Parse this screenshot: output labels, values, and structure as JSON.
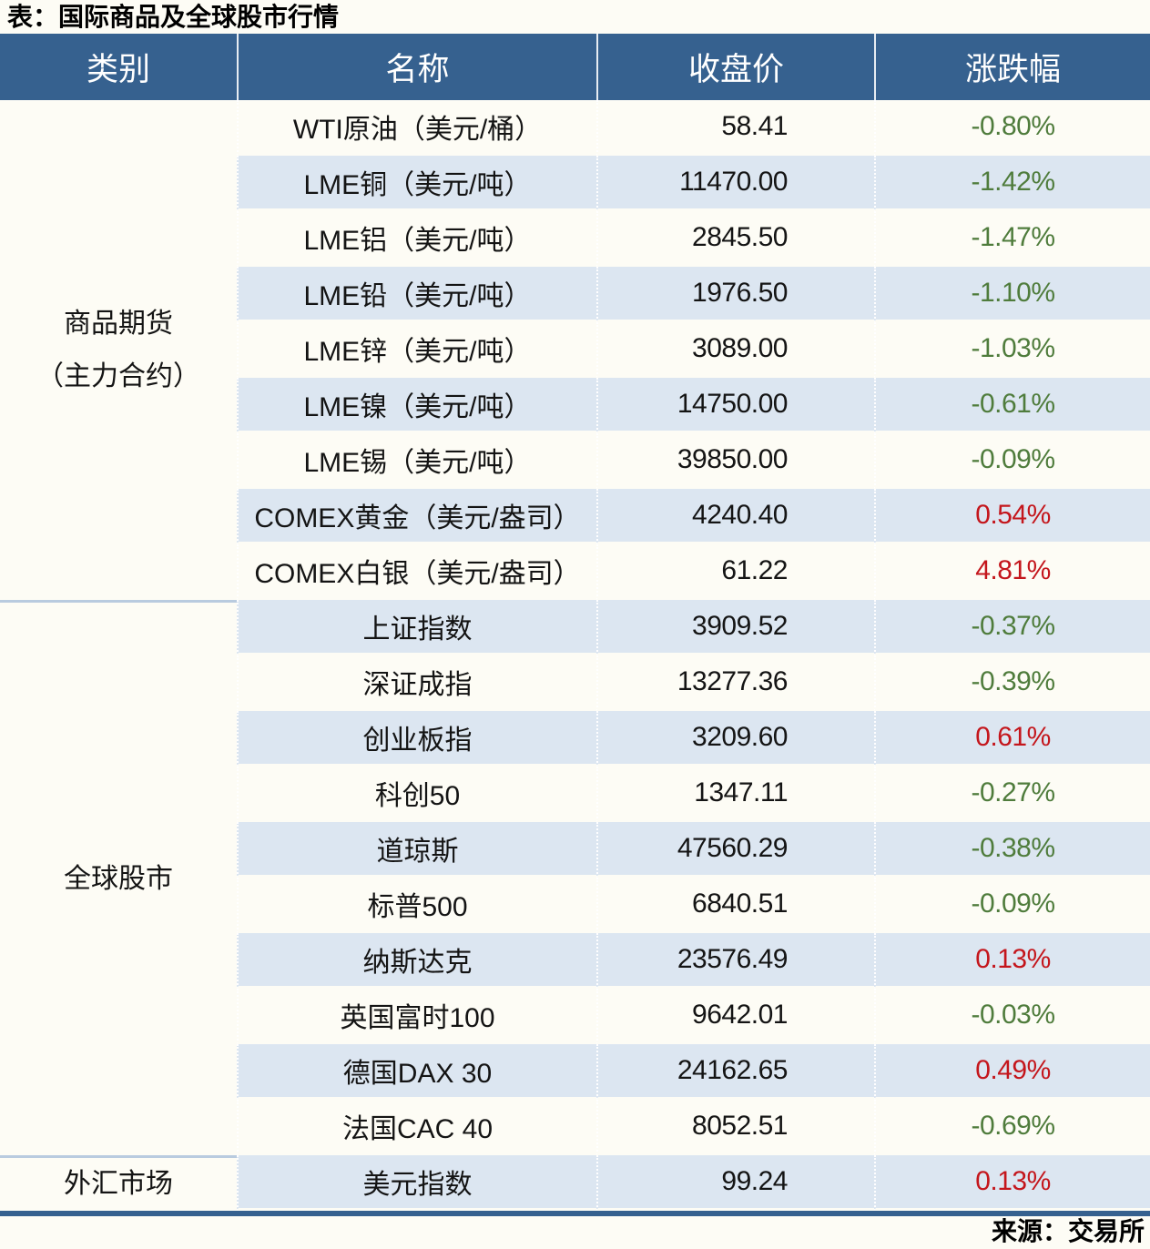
{
  "title": "表：国际商品及全球股市行情",
  "source": "来源：交易所",
  "columns": [
    "类别",
    "名称",
    "收盘价",
    "涨跌幅"
  ],
  "colors": {
    "header_bg": "#36618f",
    "stripe": "#dce6f1",
    "up_red": "#c4161c",
    "down_green": "#4f7c3c",
    "section_divider": "#b9cbdf",
    "table_border": "#36618f"
  },
  "sections": [
    {
      "category_lines": [
        "商品期货",
        "（主力合约）"
      ],
      "rows": [
        {
          "name": "WTI原油（美元/桶）",
          "close": "58.41",
          "change": "-0.80%"
        },
        {
          "name": "LME铜（美元/吨）",
          "close": "11470.00",
          "change": "-1.42%"
        },
        {
          "name": "LME铝（美元/吨）",
          "close": "2845.50",
          "change": "-1.47%"
        },
        {
          "name": "LME铅（美元/吨）",
          "close": "1976.50",
          "change": "-1.10%"
        },
        {
          "name": "LME锌（美元/吨）",
          "close": "3089.00",
          "change": "-1.03%"
        },
        {
          "name": "LME镍（美元/吨）",
          "close": "14750.00",
          "change": "-0.61%"
        },
        {
          "name": "LME锡（美元/吨）",
          "close": "39850.00",
          "change": "-0.09%"
        },
        {
          "name": "COMEX黄金（美元/盎司）",
          "close": "4240.40",
          "change": "0.54%"
        },
        {
          "name": "COMEX白银（美元/盎司）",
          "close": "61.22",
          "change": "4.81%"
        }
      ]
    },
    {
      "category_lines": [
        "全球股市"
      ],
      "rows": [
        {
          "name": "上证指数",
          "close": "3909.52",
          "change": "-0.37%"
        },
        {
          "name": "深证成指",
          "close": "13277.36",
          "change": "-0.39%"
        },
        {
          "name": "创业板指",
          "close": "3209.60",
          "change": "0.61%"
        },
        {
          "name": "科创50",
          "close": "1347.11",
          "change": "-0.27%"
        },
        {
          "name": "道琼斯",
          "close": "47560.29",
          "change": "-0.38%"
        },
        {
          "name": "标普500",
          "close": "6840.51",
          "change": "-0.09%"
        },
        {
          "name": "纳斯达克",
          "close": "23576.49",
          "change": "0.13%"
        },
        {
          "name": "英国富时100",
          "close": "9642.01",
          "change": "-0.03%"
        },
        {
          "name": "德国DAX 30",
          "close": "24162.65",
          "change": "0.49%"
        },
        {
          "name": "法国CAC 40",
          "close": "8052.51",
          "change": "-0.69%"
        }
      ]
    },
    {
      "category_lines": [
        "外汇市场"
      ],
      "rows": [
        {
          "name": "美元指数",
          "close": "99.24",
          "change": "0.13%"
        }
      ]
    }
  ]
}
